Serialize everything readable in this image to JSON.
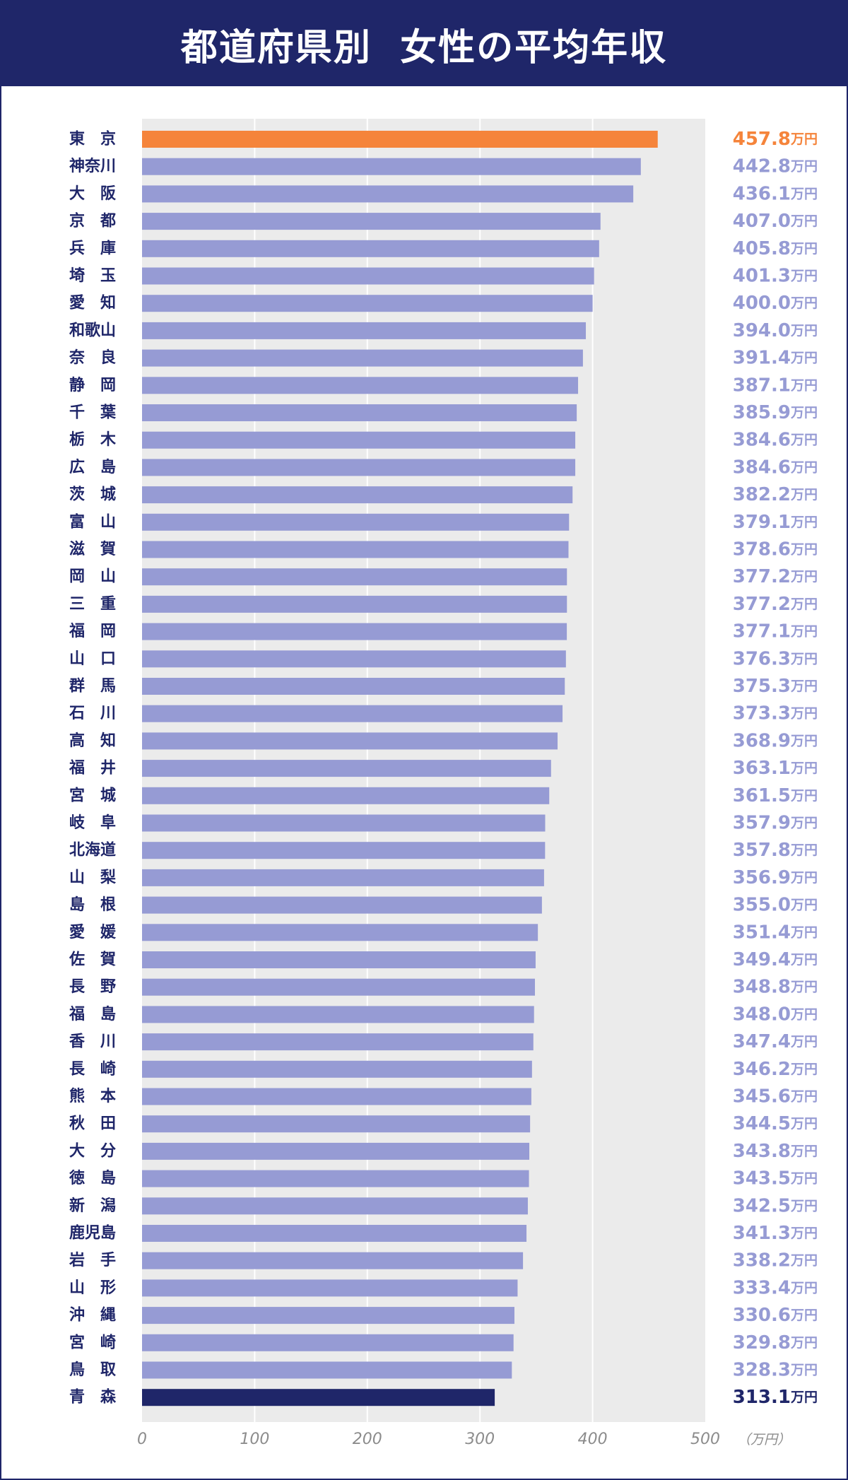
{
  "header": {
    "title": "都道府県別  女性の平均年収"
  },
  "colors": {
    "header_bg": "#1f2669",
    "plot_bg": "#ebebeb",
    "bar_default": "#969bd4",
    "bar_top": "#f5843b",
    "bar_bottom": "#1f2669",
    "label_text": "#1f2669",
    "value_default": "#969bd4",
    "value_top": "#f5843b",
    "value_bottom": "#1f2669",
    "axis_text": "#8c8c8c"
  },
  "chart_data": {
    "type": "bar",
    "orientation": "horizontal",
    "title": "都道府県別  女性の平均年収",
    "unit": "万円",
    "xlabel": "（万円）",
    "xlim": [
      0,
      500
    ],
    "xticks": [
      "0",
      "100",
      "200",
      "300",
      "400",
      "500"
    ],
    "grid": true,
    "categories": [
      "東　京",
      "神奈川",
      "大　阪",
      "京　都",
      "兵　庫",
      "埼　玉",
      "愛　知",
      "和歌山",
      "奈　良",
      "静　岡",
      "千　葉",
      "栃　木",
      "広　島",
      "茨　城",
      "富　山",
      "滋　賀",
      "岡　山",
      "三　重",
      "福　岡",
      "山　口",
      "群　馬",
      "石　川",
      "高　知",
      "福　井",
      "宮　城",
      "岐　阜",
      "北海道",
      "山　梨",
      "島　根",
      "愛　媛",
      "佐　賀",
      "長　野",
      "福　島",
      "香　川",
      "長　崎",
      "熊　本",
      "秋　田",
      "大　分",
      "徳　島",
      "新　潟",
      "鹿児島",
      "岩　手",
      "山　形",
      "沖　縄",
      "宮　崎",
      "鳥　取",
      "青　森"
    ],
    "values": [
      457.8,
      442.8,
      436.1,
      407.0,
      405.8,
      401.3,
      400.0,
      394.0,
      391.4,
      387.1,
      385.9,
      384.6,
      384.6,
      382.2,
      379.1,
      378.6,
      377.2,
      377.2,
      377.1,
      376.3,
      375.3,
      373.3,
      368.9,
      363.1,
      361.5,
      357.9,
      357.8,
      356.9,
      355.0,
      351.4,
      349.4,
      348.8,
      348.0,
      347.4,
      346.2,
      345.6,
      344.5,
      343.8,
      343.5,
      342.5,
      341.3,
      338.2,
      333.4,
      330.6,
      329.8,
      328.3,
      313.1
    ],
    "value_labels": [
      "457.8",
      "442.8",
      "436.1",
      "407.0",
      "405.8",
      "401.3",
      "400.0",
      "394.0",
      "391.4",
      "387.1",
      "385.9",
      "384.6",
      "384.6",
      "382.2",
      "379.1",
      "378.6",
      "377.2",
      "377.2",
      "377.1",
      "376.3",
      "375.3",
      "373.3",
      "368.9",
      "363.1",
      "361.5",
      "357.9",
      "357.8",
      "356.9",
      "355.0",
      "351.4",
      "349.4",
      "348.8",
      "348.0",
      "347.4",
      "346.2",
      "345.6",
      "344.5",
      "343.8",
      "343.5",
      "342.5",
      "341.3",
      "338.2",
      "333.4",
      "330.6",
      "329.8",
      "328.3",
      "313.1"
    ]
  }
}
